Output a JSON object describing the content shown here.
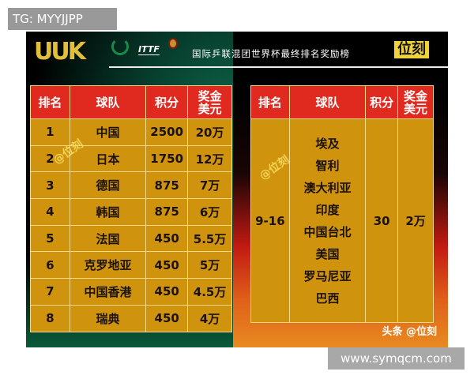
{
  "watermark_tag": "TG: MYYJJPP",
  "site_watermark": "www.symqcm.com",
  "poster": {
    "logo": "UUK",
    "ittf_logo": "ITTF",
    "title": "国际乒联混团世界杯最终排名奖励榜",
    "brand": "位刻",
    "watermark": "@位刻",
    "credit": "头条 @位刻"
  },
  "headers": [
    "排名",
    "球队",
    "积分",
    "奖金美元"
  ],
  "left_table": [
    {
      "rank": "1",
      "team": "中国",
      "points": "2500",
      "prize": "20万"
    },
    {
      "rank": "2",
      "team": "日本",
      "points": "1750",
      "prize": "12万"
    },
    {
      "rank": "3",
      "team": "德国",
      "points": "875",
      "prize": "7万"
    },
    {
      "rank": "4",
      "team": "韩国",
      "points": "875",
      "prize": "6万"
    },
    {
      "rank": "5",
      "team": "法国",
      "points": "450",
      "prize": "5.5万"
    },
    {
      "rank": "6",
      "team": "克罗地亚",
      "points": "450",
      "prize": "5万"
    },
    {
      "rank": "7",
      "team": "中国香港",
      "points": "450",
      "prize": "4.5万"
    },
    {
      "rank": "8",
      "team": "瑞典",
      "points": "450",
      "prize": "4万"
    }
  ],
  "right_table": {
    "rank": "9-16",
    "teams": [
      "埃及",
      "智利",
      "澳大利亚",
      "印度",
      "中国台北",
      "美国",
      "罗马尼亚",
      "巴西"
    ],
    "points": "30",
    "prize": "2万"
  }
}
